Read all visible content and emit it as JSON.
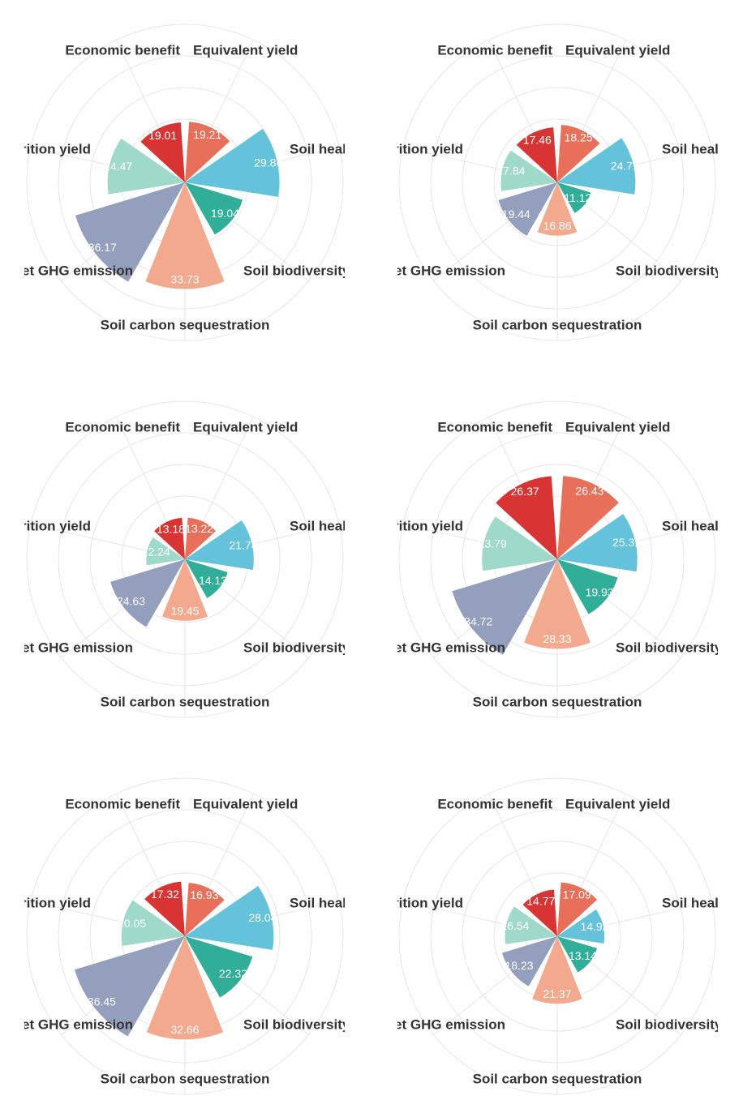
{
  "chart_data": [
    {
      "type": "polar_bar",
      "categories": [
        "Equivalent yield",
        "Soil health",
        "Soil biodiversity",
        "Soil carbon sequestration",
        "Net GHG emission",
        "Nutrition yield",
        "Economic benefit"
      ],
      "values": [
        19.21,
        29.84,
        19.04,
        33.73,
        36.17,
        24.47,
        19.01
      ],
      "colors": [
        "#e8705a",
        "#64c3db",
        "#30ae98",
        "#f2a98e",
        "#949ebd",
        "#9fd9c9",
        "#d93434"
      ],
      "ylim": [
        0,
        50
      ],
      "yticks": [
        10,
        20,
        30,
        40,
        50
      ],
      "grid": true
    },
    {
      "type": "polar_bar",
      "categories": [
        "Equivalent yield",
        "Soil health",
        "Soil biodiversity",
        "Soil carbon sequestration",
        "Net GHG emission",
        "Nutrition yield",
        "Economic benefit"
      ],
      "values": [
        18.25,
        24.71,
        11.12,
        16.86,
        19.44,
        17.84,
        17.46
      ],
      "colors": [
        "#e8705a",
        "#64c3db",
        "#30ae98",
        "#f2a98e",
        "#949ebd",
        "#9fd9c9",
        "#d93434"
      ],
      "ylim": [
        0,
        50
      ],
      "yticks": [
        10,
        20,
        30,
        40,
        50
      ],
      "grid": true
    },
    {
      "type": "polar_bar",
      "categories": [
        "Equivalent yield",
        "Soil health",
        "Soil biodiversity",
        "Soil carbon sequestration",
        "Net GHG emission",
        "Nutrition yield",
        "Economic benefit"
      ],
      "values": [
        13.22,
        21.74,
        14.13,
        19.45,
        24.63,
        12.24,
        13.18
      ],
      "colors": [
        "#e8705a",
        "#64c3db",
        "#30ae98",
        "#f2a98e",
        "#949ebd",
        "#9fd9c9",
        "#d93434"
      ],
      "ylim": [
        0,
        50
      ],
      "yticks": [
        10,
        20,
        30,
        40,
        50
      ],
      "grid": true
    },
    {
      "type": "polar_bar",
      "categories": [
        "Equivalent yield",
        "Soil health",
        "Soil biodiversity",
        "Soil carbon sequestration",
        "Net GHG emission",
        "Nutrition yield",
        "Economic benefit"
      ],
      "values": [
        26.43,
        25.31,
        19.93,
        28.33,
        34.72,
        23.79,
        26.37
      ],
      "colors": [
        "#e8705a",
        "#64c3db",
        "#30ae98",
        "#f2a98e",
        "#949ebd",
        "#9fd9c9",
        "#d93434"
      ],
      "ylim": [
        0,
        50
      ],
      "yticks": [
        10,
        20,
        30,
        40,
        50
      ],
      "grid": true
    },
    {
      "type": "polar_bar",
      "categories": [
        "Equivalent yield",
        "Soil health",
        "Soil biodiversity",
        "Soil carbon sequestration",
        "Net GHG emission",
        "Nutrition yield",
        "Economic benefit"
      ],
      "values": [
        16.93,
        28.04,
        22.32,
        32.66,
        36.45,
        20.05,
        17.32
      ],
      "colors": [
        "#e8705a",
        "#64c3db",
        "#30ae98",
        "#f2a98e",
        "#949ebd",
        "#9fd9c9",
        "#d93434"
      ],
      "ylim": [
        0,
        50
      ],
      "yticks": [
        10,
        20,
        30,
        40,
        50
      ],
      "grid": true
    },
    {
      "type": "polar_bar",
      "categories": [
        "Equivalent yield",
        "Soil health",
        "Soil biodiversity",
        "Soil carbon sequestration",
        "Net GHG emission",
        "Nutrition yield",
        "Economic benefit"
      ],
      "values": [
        17.09,
        14.92,
        13.14,
        21.37,
        18.23,
        16.54,
        14.77
      ],
      "colors": [
        "#e8705a",
        "#64c3db",
        "#30ae98",
        "#f2a98e",
        "#949ebd",
        "#9fd9c9",
        "#d93434"
      ],
      "ylim": [
        0,
        50
      ],
      "yticks": [
        10,
        20,
        30,
        40,
        50
      ],
      "grid": true
    }
  ]
}
